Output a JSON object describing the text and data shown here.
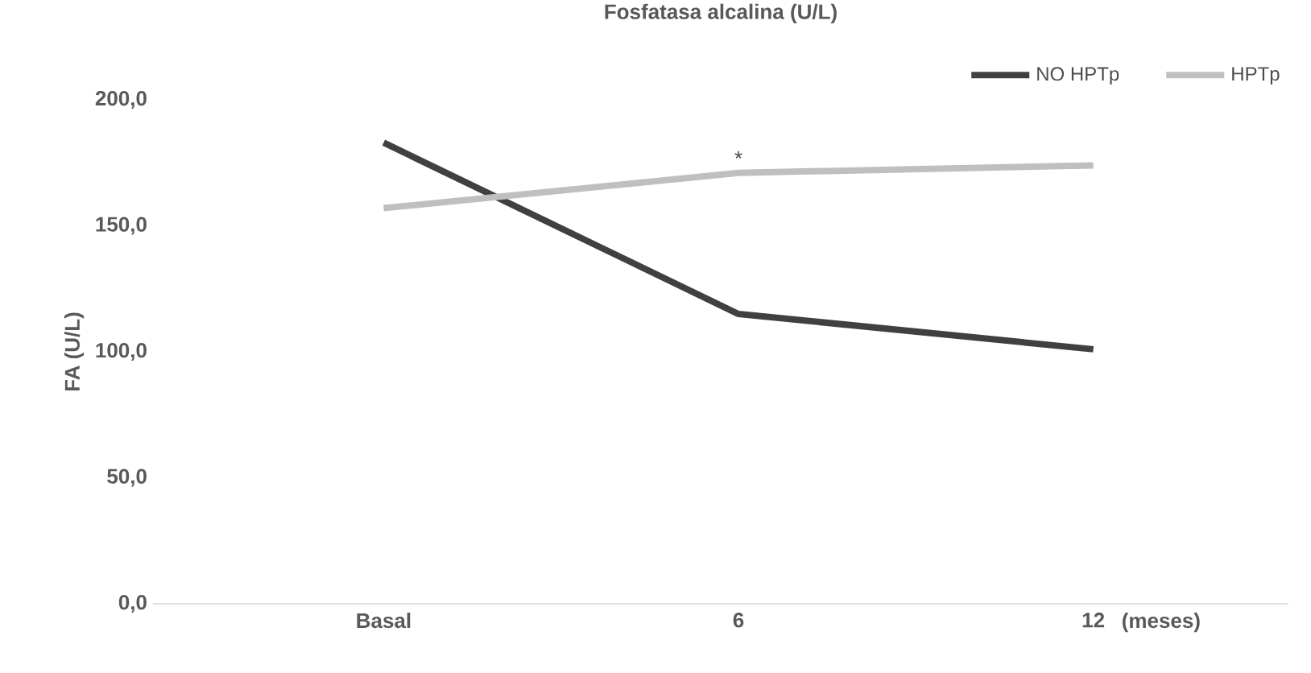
{
  "chart_data": {
    "type": "line",
    "title": "Fosfatasa  alcalina (U/L)",
    "ylabel": "FA (U/L)",
    "xlabel": "(meses)",
    "categories": [
      "Basal",
      "6",
      "12"
    ],
    "series": [
      {
        "name": "NO HPTp",
        "color": "#404040",
        "values": [
          183,
          115,
          101
        ]
      },
      {
        "name": "HPTp",
        "color": "#bfbfbf",
        "values": [
          157,
          171,
          174
        ]
      }
    ],
    "ylim": [
      0,
      200
    ],
    "yticks": [
      {
        "value": 0,
        "label": "0,0"
      },
      {
        "value": 50,
        "label": "50,0"
      },
      {
        "value": 100,
        "label": "100,0"
      },
      {
        "value": 150,
        "label": "150,0"
      },
      {
        "value": 200,
        "label": "200,0"
      }
    ],
    "annotations": [
      {
        "text": "*",
        "x": "6",
        "y": 171
      }
    ],
    "legend": "top right",
    "marker": "none",
    "line_style": "solid"
  }
}
